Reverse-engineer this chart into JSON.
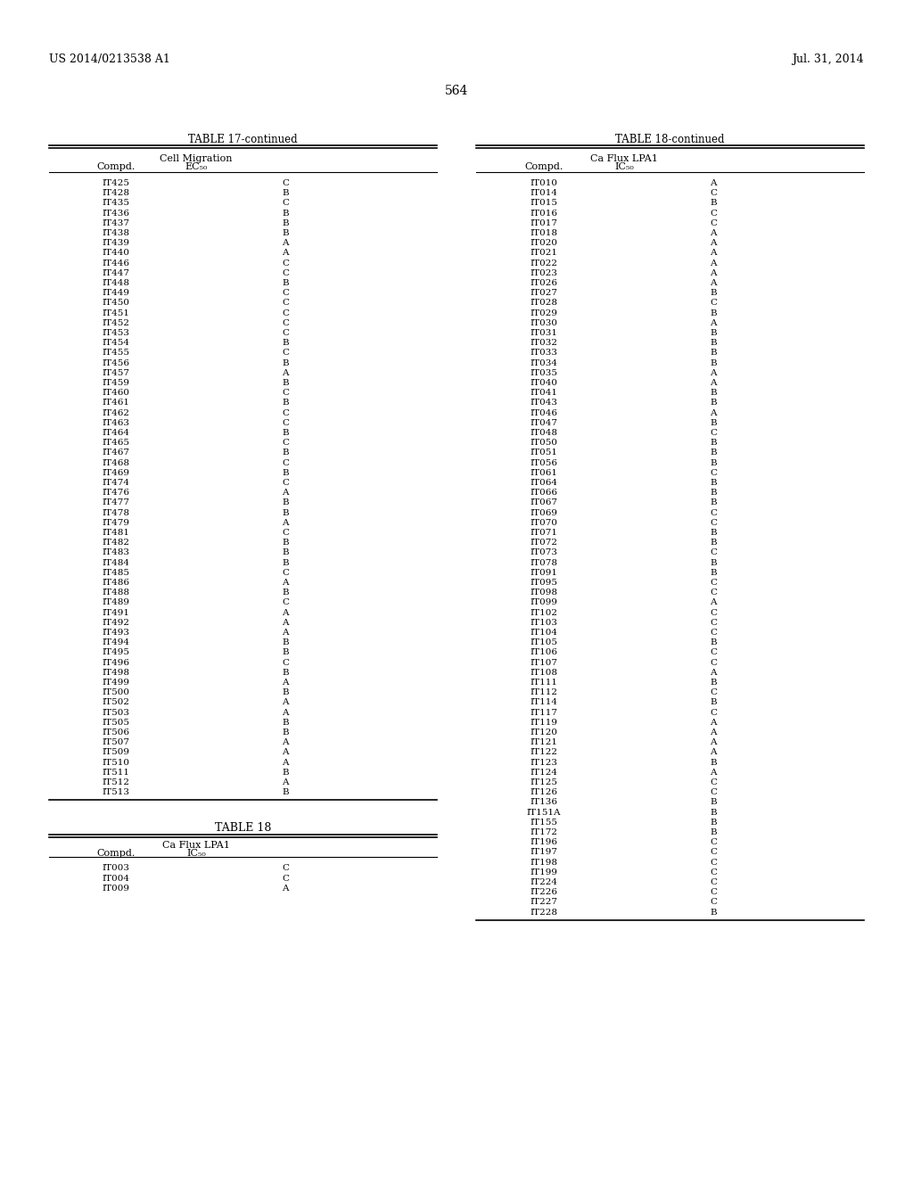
{
  "header_left": "US 2014/0213538 A1",
  "header_right": "Jul. 31, 2014",
  "page_number": "564",
  "table17_title": "TABLE 17-continued",
  "table17_col1_header": "Compd.",
  "table17_col2_header1": "Cell Migration",
  "table17_col2_header2": "EC₅₀",
  "table17_data": [
    [
      "IT425",
      "C"
    ],
    [
      "IT428",
      "B"
    ],
    [
      "IT435",
      "C"
    ],
    [
      "IT436",
      "B"
    ],
    [
      "IT437",
      "B"
    ],
    [
      "IT438",
      "B"
    ],
    [
      "IT439",
      "A"
    ],
    [
      "IT440",
      "A"
    ],
    [
      "IT446",
      "C"
    ],
    [
      "IT447",
      "C"
    ],
    [
      "IT448",
      "B"
    ],
    [
      "IT449",
      "C"
    ],
    [
      "IT450",
      "C"
    ],
    [
      "IT451",
      "C"
    ],
    [
      "IT452",
      "C"
    ],
    [
      "IT453",
      "C"
    ],
    [
      "IT454",
      "B"
    ],
    [
      "IT455",
      "C"
    ],
    [
      "IT456",
      "B"
    ],
    [
      "IT457",
      "A"
    ],
    [
      "IT459",
      "B"
    ],
    [
      "IT460",
      "C"
    ],
    [
      "IT461",
      "B"
    ],
    [
      "IT462",
      "C"
    ],
    [
      "IT463",
      "C"
    ],
    [
      "IT464",
      "B"
    ],
    [
      "IT465",
      "C"
    ],
    [
      "IT467",
      "B"
    ],
    [
      "IT468",
      "C"
    ],
    [
      "IT469",
      "B"
    ],
    [
      "IT474",
      "C"
    ],
    [
      "IT476",
      "A"
    ],
    [
      "IT477",
      "B"
    ],
    [
      "IT478",
      "B"
    ],
    [
      "IT479",
      "A"
    ],
    [
      "IT481",
      "C"
    ],
    [
      "IT482",
      "B"
    ],
    [
      "IT483",
      "B"
    ],
    [
      "IT484",
      "B"
    ],
    [
      "IT485",
      "C"
    ],
    [
      "IT486",
      "A"
    ],
    [
      "IT488",
      "B"
    ],
    [
      "IT489",
      "C"
    ],
    [
      "IT491",
      "A"
    ],
    [
      "IT492",
      "A"
    ],
    [
      "IT493",
      "A"
    ],
    [
      "IT494",
      "B"
    ],
    [
      "IT495",
      "B"
    ],
    [
      "IT496",
      "C"
    ],
    [
      "IT498",
      "B"
    ],
    [
      "IT499",
      "A"
    ],
    [
      "IT500",
      "B"
    ],
    [
      "IT502",
      "A"
    ],
    [
      "IT503",
      "A"
    ],
    [
      "IT505",
      "B"
    ],
    [
      "IT506",
      "B"
    ],
    [
      "IT507",
      "A"
    ],
    [
      "IT509",
      "A"
    ],
    [
      "IT510",
      "A"
    ],
    [
      "IT511",
      "B"
    ],
    [
      "IT512",
      "A"
    ],
    [
      "IT513",
      "B"
    ]
  ],
  "table18_title": "TABLE 18",
  "table18_col1_header": "Compd.",
  "table18_col2_header1": "Ca Flux LPA1",
  "table18_col2_header2": "IC₅₀",
  "table18_start_data": [
    [
      "IT003",
      "C"
    ],
    [
      "IT004",
      "C"
    ],
    [
      "IT009",
      "A"
    ]
  ],
  "table18_cont_title": "TABLE 18-continued",
  "table18_cont_data": [
    [
      "IT010",
      "A"
    ],
    [
      "IT014",
      "C"
    ],
    [
      "IT015",
      "B"
    ],
    [
      "IT016",
      "C"
    ],
    [
      "IT017",
      "C"
    ],
    [
      "IT018",
      "A"
    ],
    [
      "IT020",
      "A"
    ],
    [
      "IT021",
      "A"
    ],
    [
      "IT022",
      "A"
    ],
    [
      "IT023",
      "A"
    ],
    [
      "IT026",
      "A"
    ],
    [
      "IT027",
      "B"
    ],
    [
      "IT028",
      "C"
    ],
    [
      "IT029",
      "B"
    ],
    [
      "IT030",
      "A"
    ],
    [
      "IT031",
      "B"
    ],
    [
      "IT032",
      "B"
    ],
    [
      "IT033",
      "B"
    ],
    [
      "IT034",
      "B"
    ],
    [
      "IT035",
      "A"
    ],
    [
      "IT040",
      "A"
    ],
    [
      "IT041",
      "B"
    ],
    [
      "IT043",
      "B"
    ],
    [
      "IT046",
      "A"
    ],
    [
      "IT047",
      "B"
    ],
    [
      "IT048",
      "C"
    ],
    [
      "IT050",
      "B"
    ],
    [
      "IT051",
      "B"
    ],
    [
      "IT056",
      "B"
    ],
    [
      "IT061",
      "C"
    ],
    [
      "IT064",
      "B"
    ],
    [
      "IT066",
      "B"
    ],
    [
      "IT067",
      "B"
    ],
    [
      "IT069",
      "C"
    ],
    [
      "IT070",
      "C"
    ],
    [
      "IT071",
      "B"
    ],
    [
      "IT072",
      "B"
    ],
    [
      "IT073",
      "C"
    ],
    [
      "IT078",
      "B"
    ],
    [
      "IT091",
      "B"
    ],
    [
      "IT095",
      "C"
    ],
    [
      "IT098",
      "C"
    ],
    [
      "IT099",
      "A"
    ],
    [
      "IT102",
      "C"
    ],
    [
      "IT103",
      "C"
    ],
    [
      "IT104",
      "C"
    ],
    [
      "IT105",
      "B"
    ],
    [
      "IT106",
      "C"
    ],
    [
      "IT107",
      "C"
    ],
    [
      "IT108",
      "A"
    ],
    [
      "IT111",
      "B"
    ],
    [
      "IT112",
      "C"
    ],
    [
      "IT114",
      "B"
    ],
    [
      "IT117",
      "C"
    ],
    [
      "IT119",
      "A"
    ],
    [
      "IT120",
      "A"
    ],
    [
      "IT121",
      "A"
    ],
    [
      "IT122",
      "A"
    ],
    [
      "IT123",
      "B"
    ],
    [
      "IT124",
      "A"
    ],
    [
      "IT125",
      "C"
    ],
    [
      "IT126",
      "C"
    ],
    [
      "IT136",
      "B"
    ],
    [
      "IT151A",
      "B"
    ],
    [
      "IT155",
      "B"
    ],
    [
      "IT172",
      "B"
    ],
    [
      "IT196",
      "C"
    ],
    [
      "IT197",
      "C"
    ],
    [
      "IT198",
      "C"
    ],
    [
      "IT199",
      "C"
    ],
    [
      "IT224",
      "C"
    ],
    [
      "IT226",
      "C"
    ],
    [
      "IT227",
      "C"
    ],
    [
      "IT228",
      "B"
    ]
  ],
  "background_color": "#ffffff",
  "text_color": "#000000",
  "font_size": 7.5,
  "header_font_size": 9
}
